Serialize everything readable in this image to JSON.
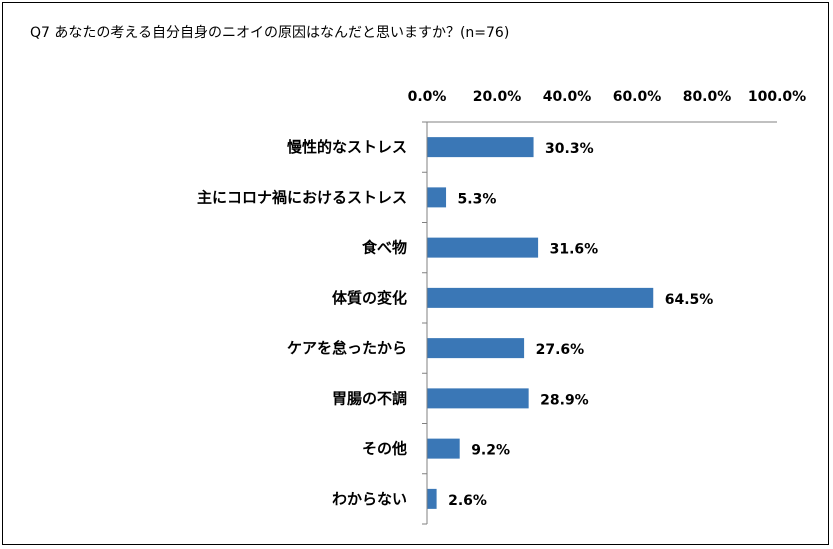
{
  "chart_data": {
    "type": "bar",
    "orientation": "horizontal",
    "title": "Q7 あなたの考える自分自身のニオイの原因はなんだと思いますか？(n=76)",
    "categories": [
      "慢性的なストレス",
      "主にコロナ禍におけるストレス",
      "食べ物",
      "体質の変化",
      "ケアを怠ったから",
      "胃腸の不調",
      "その他",
      "わからない"
    ],
    "values": [
      30.3,
      5.3,
      31.6,
      64.5,
      27.6,
      28.9,
      9.2,
      2.6
    ],
    "value_labels": [
      "30.3%",
      "5.3%",
      "31.6%",
      "64.5%",
      "27.6%",
      "28.9%",
      "9.2%",
      "2.6%"
    ],
    "xlim": [
      0,
      100
    ],
    "ticks": [
      "0.0%",
      "20.0%",
      "40.0%",
      "60.0%",
      "80.0%",
      "100.0%"
    ],
    "tick_values": [
      0,
      20,
      40,
      60,
      80,
      100
    ],
    "axis_position": "top",
    "grid": false,
    "legend": "none",
    "bar_color": "#3a77b6",
    "axis_color": "#808080"
  }
}
